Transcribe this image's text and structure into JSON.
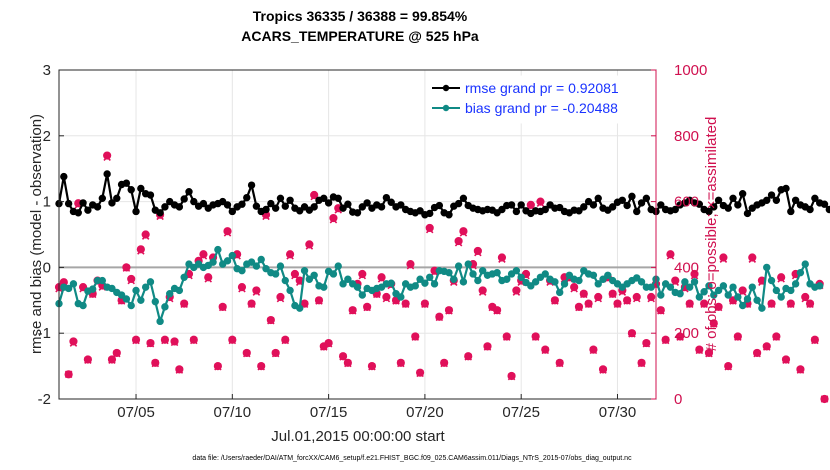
{
  "chart_data": {
    "type": "line",
    "title": "Tropics 36335 / 36388 = 99.854%",
    "subtitle": "ACARS_TEMPERATURE @ 525 hPa",
    "xlabel": "Jul.01,2015 00:00:00 start",
    "ylabel_left": "rmse and bias (model - observation)",
    "ylabel_right": "# of obs: o=possible; ×=assimilated",
    "footnote": "data file: /Users/raeder/DAI/ATM_forcXX/CAM6_setup/f.e21.FHIST_BGC.f09_025.CAM6assim.011/Diags_NTrS_2015-07/obs_diag_output.nc",
    "xlim": [
      1,
      32
    ],
    "ylim_left": [
      -2,
      3
    ],
    "ylim_right": [
      0,
      1000
    ],
    "x_ticks": [
      5,
      10,
      15,
      20,
      25,
      30
    ],
    "x_tick_labels": [
      "07/05",
      "07/10",
      "07/15",
      "07/20",
      "07/25",
      "07/30"
    ],
    "y_ticks_left": [
      -2,
      -1,
      0,
      1,
      2,
      3
    ],
    "y_tick_labels_left": [
      "-2",
      "-1",
      "0",
      "1",
      "2",
      "3"
    ],
    "y_ticks_right": [
      0,
      200,
      400,
      600,
      800,
      1000
    ],
    "y_tick_labels_right": [
      "0",
      "200",
      "400",
      "600",
      "800",
      "1000"
    ],
    "zero_line": 0,
    "legend_position": "top-right",
    "x_start": 1,
    "x_step": 0.25,
    "series": [
      {
        "name": "rmse grand pr = 0.92081",
        "color": "#000000",
        "values": [
          0.97,
          1.38,
          0.97,
          0.85,
          0.83,
          0.98,
          0.87,
          0.95,
          0.92,
          1.05,
          1.42,
          0.98,
          1.05,
          1.26,
          1.28,
          1.18,
          0.85,
          1.2,
          1.12,
          1.1,
          0.87,
          0.83,
          0.92,
          1.0,
          0.95,
          0.92,
          1.04,
          1.15,
          1.0,
          0.93,
          0.97,
          0.9,
          0.95,
          0.97,
          1.0,
          0.95,
          0.85,
          0.92,
          0.96,
          1.06,
          1.25,
          0.93,
          0.85,
          0.88,
          0.97,
          0.9,
          1.05,
          0.93,
          1.02,
          0.9,
          0.86,
          0.92,
          0.87,
          0.92,
          1.02,
          1.05,
          0.98,
          1.07,
          1.05,
          0.9,
          0.96,
          0.84,
          0.83,
          0.92,
          0.98,
          0.9,
          0.95,
          0.92,
          1.06,
          0.99,
          0.92,
          0.95,
          0.88,
          0.85,
          0.83,
          0.86,
          0.8,
          0.82,
          0.91,
          0.94,
          0.83,
          0.8,
          0.93,
          0.97,
          1.05,
          0.94,
          0.9,
          0.88,
          0.86,
          0.88,
          0.87,
          0.83,
          0.88,
          0.94,
          0.95,
          0.85,
          0.95,
          0.86,
          0.82,
          0.86,
          0.85,
          0.88,
          0.95,
          0.9,
          0.91,
          0.85,
          0.83,
          0.87,
          0.86,
          0.92,
          1.0,
          0.95,
          1.05,
          0.9,
          0.87,
          0.92,
          0.99,
          1.02,
          0.94,
          1.08,
          0.85,
          0.98,
          1.05,
          0.88,
          0.85,
          0.95,
          0.88,
          0.86,
          0.88,
          0.95,
          0.98,
          1.02,
          0.98,
          0.96,
          0.88,
          0.85,
          0.92,
          1.02,
          0.94,
          0.9,
          1.05,
          0.95,
          1.12,
          0.82,
          0.9,
          0.95,
          0.98,
          1.02,
          1.1,
          1.02,
          1.18,
          1.2,
          0.85,
          1.02,
          0.95,
          0.92,
          0.88,
          1.05,
          0.98,
          0.96,
          0.88,
          0.85
        ]
      },
      {
        "name": "bias grand pr = -0.20488",
        "color": "#108a85",
        "values": [
          -0.55,
          -0.3,
          -0.32,
          -0.25,
          -0.55,
          -0.58,
          -0.36,
          -0.33,
          -0.2,
          -0.2,
          -0.3,
          -0.32,
          -0.38,
          -0.42,
          -0.48,
          -0.58,
          -0.35,
          -0.5,
          -0.3,
          -0.22,
          -0.52,
          -0.82,
          -0.6,
          -0.4,
          -0.32,
          -0.35,
          -0.15,
          0.05,
          0.0,
          0.05,
          0.0,
          0.03,
          0.08,
          0.27,
          0.05,
          0.1,
          0.18,
          -0.02,
          -0.05,
          0.05,
          0.08,
          0.02,
          0.12,
          -0.02,
          -0.08,
          -0.1,
          0.02,
          -0.2,
          -0.35,
          -0.58,
          -0.62,
          -0.05,
          -0.18,
          -0.12,
          -0.28,
          -0.3,
          -0.06,
          -0.1,
          0.02,
          -0.25,
          -0.18,
          -0.25,
          -0.3,
          -0.42,
          -0.32,
          -0.35,
          -0.32,
          -0.3,
          -0.25,
          -0.24,
          -0.4,
          -0.45,
          -0.25,
          -0.3,
          -0.28,
          -0.18,
          -0.24,
          -0.15,
          -0.25,
          -0.05,
          -0.06,
          -0.08,
          -0.18,
          0.02,
          -0.22,
          0.05,
          -0.1,
          -0.2,
          -0.05,
          -0.12,
          -0.1,
          -0.08,
          -0.2,
          -0.18,
          -0.1,
          -0.05,
          -0.15,
          -0.23,
          -0.28,
          -0.22,
          -0.15,
          -0.1,
          -0.18,
          -0.22,
          -0.38,
          -0.25,
          -0.12,
          -0.18,
          -0.2,
          -0.05,
          -0.1,
          -0.12,
          -0.25,
          -0.18,
          -0.12,
          -0.2,
          -0.25,
          -0.3,
          -0.25,
          -0.2,
          -0.16,
          -0.22,
          -0.3,
          -0.3,
          -0.18,
          -0.42,
          -0.25,
          -0.3,
          -0.38,
          -0.4,
          -0.22,
          -0.3,
          -0.22,
          -0.45,
          -0.37,
          -0.28,
          -0.42,
          -0.35,
          -0.28,
          -0.42,
          -0.3,
          -0.45,
          -0.58,
          -0.48,
          -0.3,
          -0.5,
          -0.62,
          0.0,
          -0.2,
          -0.35,
          -0.45,
          -0.32,
          -0.35,
          -0.25,
          -0.08,
          0.05,
          -0.25,
          -0.3,
          -0.28
        ]
      },
      {
        "name": "possible",
        "color": "#e0105a",
        "marker": "o",
        "values": [
          340,
          355,
          75,
          175,
          595,
          340,
          120,
          320,
          360,
          345,
          740,
          120,
          140,
          300,
          400,
          365,
          180,
          455,
          500,
          170,
          110,
          560,
          180,
          310,
          175,
          90,
          290,
          380,
          180,
          420,
          440,
          370,
          430,
          100,
          280,
          510,
          180,
          440,
          340,
          140,
          290,
          330,
          100,
          560,
          240,
          140,
          310,
          180,
          440,
          380,
          360,
          290,
          470,
          620,
          300,
          160,
          170,
          550,
          580,
          130,
          110,
          270,
          350,
          380,
          280,
          100,
          320,
          370,
          310,
          350,
          300,
          110,
          290,
          410,
          190,
          80,
          290,
          520,
          390,
          250,
          110,
          270,
          360,
          480,
          510,
          130,
          410,
          450,
          330,
          160,
          280,
          270,
          430,
          190,
          70,
          330,
          360,
          380,
          590,
          190,
          600,
          150,
          360,
          300,
          110,
          370,
          370,
          340,
          280,
          320,
          290,
          150,
          310,
          90,
          370,
          320,
          290,
          330,
          300,
          200,
          310,
          110,
          170,
          310,
          350,
          270,
          180,
          440,
          360,
          190,
          340,
          290,
          380,
          150,
          290,
          140,
          230,
          280,
          430,
          100,
          300,
          190,
          330,
          290,
          430,
          140,
          360,
          160,
          290,
          190,
          370,
          120,
          290,
          380,
          90,
          310,
          290,
          180,
          350,
          0
        ]
      },
      {
        "name": "assimilated",
        "color": "#e0105a",
        "marker": "x",
        "values": [
          335,
          350,
          75,
          170,
          590,
          335,
          118,
          318,
          355,
          340,
          735,
          118,
          138,
          298,
          398,
          360,
          178,
          450,
          495,
          168,
          108,
          555,
          178,
          305,
          172,
          88,
          288,
          375,
          178,
          415,
          435,
          365,
          425,
          98,
          278,
          505,
          178,
          435,
          335,
          138,
          288,
          325,
          98,
          555,
          238,
          138,
          305,
          178,
          435,
          375,
          355,
          288,
          465,
          615,
          298,
          158,
          168,
          545,
          575,
          128,
          108,
          268,
          345,
          375,
          278,
          98,
          318,
          365,
          305,
          345,
          298,
          108,
          288,
          405,
          188,
          78,
          288,
          515,
          385,
          248,
          108,
          268,
          355,
          475,
          505,
          128,
          405,
          445,
          325,
          158,
          278,
          268,
          425,
          188,
          68,
          325,
          355,
          375,
          585,
          188,
          595,
          148,
          355,
          298,
          108,
          365,
          365,
          335,
          278,
          318,
          288,
          148,
          305,
          88,
          365,
          318,
          288,
          325,
          298,
          198,
          305,
          108,
          168,
          305,
          345,
          268,
          178,
          435,
          355,
          188,
          335,
          288,
          375,
          148,
          288,
          138,
          228,
          278,
          425,
          98,
          298,
          188,
          325,
          288,
          425,
          138,
          355,
          158,
          288,
          188,
          365,
          118,
          288,
          375,
          88,
          305,
          288,
          178,
          345,
          0
        ]
      }
    ]
  }
}
